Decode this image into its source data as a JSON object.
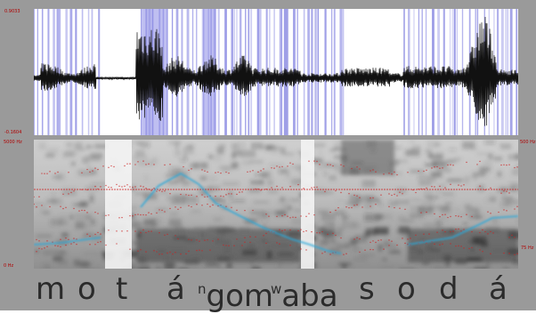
{
  "waveform": {
    "axis_top_label": "0.9033",
    "axis_bottom_label": "-0.1604",
    "colors": {
      "background": "#ffffff",
      "selection": "#8a8ae6",
      "trace": "#111111"
    }
  },
  "spectrogram": {
    "axis_top_label": "5000 Hz",
    "axis_bottom_label": "0 Hz",
    "right_top_label": "500 Hz",
    "right_mid_label": "75 Hz",
    "colors": {
      "pitch": "#2aa7d8",
      "formant": "#cc2222",
      "grid": "#d01a1a"
    }
  },
  "transcript": {
    "segments": [
      {
        "text": "m",
        "sup": ""
      },
      {
        "text": "o",
        "sup": ""
      },
      {
        "text": "t",
        "sup": ""
      },
      {
        "text": "á",
        "sup": ""
      },
      {
        "text": "gom",
        "sup": "n"
      },
      {
        "text": "aba",
        "sup": "w"
      },
      {
        "text": "s",
        "sup": ""
      },
      {
        "text": "o",
        "sup": ""
      },
      {
        "text": "d",
        "sup": ""
      },
      {
        "text": "á",
        "sup": ""
      }
    ]
  }
}
